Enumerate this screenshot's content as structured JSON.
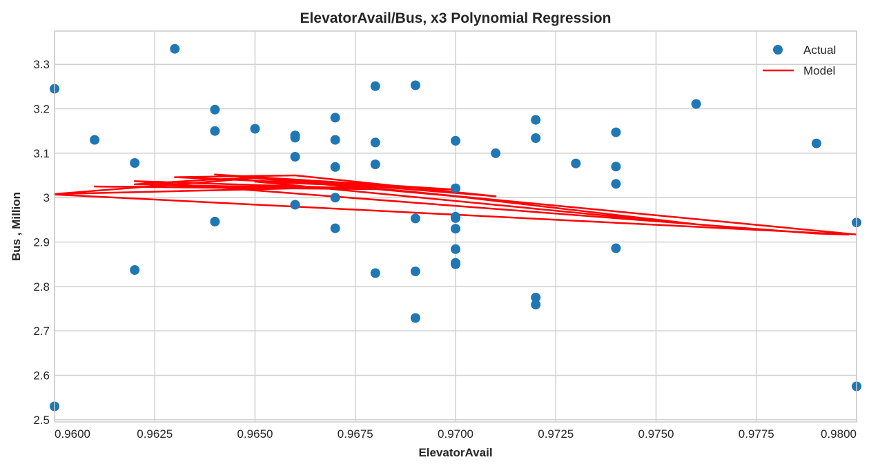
{
  "chart_data": {
    "type": "scatter",
    "title": "ElevatorAvail/Bus, x3 Polynomial Regression",
    "xlabel": "ElevatorAvail",
    "ylabel": "Bus , Million",
    "xlim": [
      0.96,
      0.98
    ],
    "ylim": [
      2.495,
      3.375
    ],
    "xticks": [
      "0.9600",
      "0.9625",
      "0.9650",
      "0.9675",
      "0.9700",
      "0.9725",
      "0.9750",
      "0.9775",
      "0.9800"
    ],
    "yticks": [
      "2.5",
      "2.6",
      "2.7",
      "2.8",
      "2.9",
      "3",
      "3.1",
      "3.2",
      "3.3"
    ],
    "grid": true,
    "legend_position": "top-right",
    "colors": {
      "actual": "#1f77b4",
      "model": "#ff0000"
    },
    "series": [
      {
        "name": "Actual",
        "kind": "scatter",
        "points": [
          [
            0.96,
            3.245
          ],
          [
            0.96,
            2.53
          ],
          [
            0.961,
            3.13
          ],
          [
            0.962,
            3.078
          ],
          [
            0.962,
            2.837
          ],
          [
            0.963,
            3.335
          ],
          [
            0.964,
            3.198
          ],
          [
            0.964,
            3.15
          ],
          [
            0.964,
            2.946
          ],
          [
            0.965,
            3.155
          ],
          [
            0.966,
            3.14
          ],
          [
            0.966,
            3.135
          ],
          [
            0.966,
            3.092
          ],
          [
            0.966,
            2.984
          ],
          [
            0.967,
            3.18
          ],
          [
            0.967,
            3.13
          ],
          [
            0.967,
            3.069
          ],
          [
            0.967,
            3.0
          ],
          [
            0.967,
            2.931
          ],
          [
            0.968,
            3.251
          ],
          [
            0.968,
            3.124
          ],
          [
            0.968,
            3.075
          ],
          [
            0.968,
            2.83
          ],
          [
            0.969,
            3.253
          ],
          [
            0.969,
            2.953
          ],
          [
            0.969,
            2.834
          ],
          [
            0.969,
            2.729
          ],
          [
            0.97,
            3.128
          ],
          [
            0.97,
            3.021
          ],
          [
            0.97,
            2.957
          ],
          [
            0.97,
            2.954
          ],
          [
            0.97,
            2.93
          ],
          [
            0.97,
            2.884
          ],
          [
            0.97,
            2.853
          ],
          [
            0.97,
            2.85
          ],
          [
            0.971,
            3.1
          ],
          [
            0.972,
            3.175
          ],
          [
            0.972,
            3.134
          ],
          [
            0.972,
            2.775
          ],
          [
            0.972,
            2.759
          ],
          [
            0.973,
            3.077
          ],
          [
            0.974,
            3.147
          ],
          [
            0.974,
            3.07
          ],
          [
            0.974,
            3.031
          ],
          [
            0.974,
            2.886
          ],
          [
            0.976,
            3.211
          ],
          [
            0.979,
            3.122
          ],
          [
            0.98,
            2.944
          ],
          [
            0.98,
            2.575
          ]
        ]
      },
      {
        "name": "Model",
        "kind": "line",
        "points": [
          [
            0.96,
            3.007
          ],
          [
            0.9798,
            2.917
          ],
          [
            0.979,
            2.919
          ],
          [
            0.962,
            3.037
          ],
          [
            0.9672,
            3.022
          ],
          [
            0.961,
            3.025
          ],
          [
            0.968,
            3.019
          ],
          [
            0.962,
            3.03
          ],
          [
            0.964,
            3.041
          ],
          [
            0.965,
            3.044
          ],
          [
            0.96,
            3.008
          ],
          [
            0.968,
            3.025
          ],
          [
            0.965,
            3.036
          ],
          [
            0.976,
            2.94
          ],
          [
            0.97,
            3.003
          ],
          [
            0.964,
            3.052
          ],
          [
            0.97,
            3.018
          ],
          [
            0.963,
            3.046
          ],
          [
            0.966,
            3.05
          ],
          [
            0.971,
            3.003
          ],
          [
            0.965,
            3.047
          ],
          [
            0.98,
            2.917
          ]
        ]
      }
    ]
  }
}
